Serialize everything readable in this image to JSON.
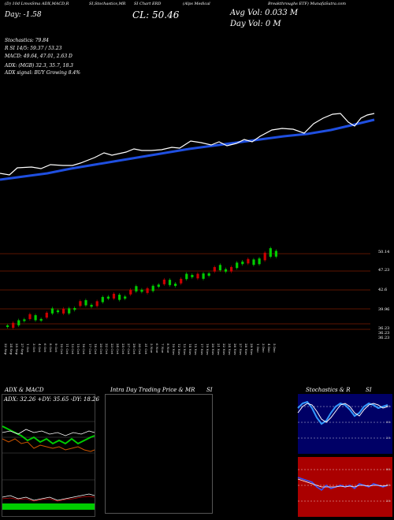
{
  "header": {
    "segments": [
      "(D) 10d LmvsSma ADX,MACD,R",
      "SI,Stochastics,MR",
      "SI Chart ERD",
      "(Alps Medical",
      "Breakthroughs ETF) MunafaSutra.com"
    ],
    "day_change": "Day: -1.58",
    "close": "CL: 50.46",
    "avg_vol": "Avg Vol: 0.033 M",
    "day_vol": "Day Vol: 0   M"
  },
  "indicators": {
    "stochastics": "Stochastics: 79.84",
    "rsi": "R                    SI 14/5: 59.37 / 53.23",
    "macd": "MACD: 49.64, 47.01, 2.63 D",
    "adx": "ADX:                          (MGB) 32.3,  35.7,  18.3",
    "adx_signal": "ADX  signal:                          BUY Growing 8.4%"
  },
  "price_levels": [
    "50.14",
    "47.23",
    "42.6",
    "39.96",
    "36.23",
    "36.23",
    "36.23"
  ],
  "dates": [
    "22 Sep",
    "24 Sep",
    "25 Sep",
    "27 Sep",
    "1 Oct",
    "3 Oct",
    "4 Oct",
    "6 Oct",
    "8 Oct",
    "9 Oct",
    "10 Oct",
    "11 Oct",
    "13 Oct",
    "15 Oct",
    "16 Oct",
    "17 Oct",
    "18 Oct",
    "20 Oct",
    "22 Oct",
    "23 Oct",
    "24 Oct",
    "25 Oct",
    "27 Oct",
    "29 Oct",
    "30 Oct",
    "31 Oct",
    "5 Nov",
    "6 Nov",
    "7 Nov",
    "8 Nov",
    "10 Nov",
    "12 Nov",
    "13 Nov",
    "14 Nov",
    "15 Nov",
    "17 Nov",
    "19 Nov",
    "20 Nov",
    "21 Nov",
    "22 Nov",
    "24 Nov",
    "26 Nov",
    "27 Nov",
    "28 Nov",
    "29 Nov",
    "1 Dec",
    "3 Dec",
    "4 Dec",
    "5 Dec"
  ],
  "panels": {
    "adx_macd": {
      "title": "ADX  & MACD",
      "readout": "ADX: 32.26  +DY: 35.65  -DY: 18.26"
    },
    "intraday": {
      "title": "Intra Day Trading Price  & MR",
      "title_suffix": "SI"
    },
    "stoch_rsi": {
      "title": "Stochastics & R",
      "title_suffix": "SI",
      "stoch_ticks": [
        "80",
        "50",
        "20"
      ],
      "rsi_ticks": [
        "80",
        "50",
        "20"
      ]
    }
  },
  "colors": {
    "background": "#000000",
    "price_line": "#ffffff",
    "ma_line": "#1f4fe0",
    "candle_up": "#00cc00",
    "candle_down": "#cc0000",
    "level_line": "#7a1a00",
    "stoch_panel_bg": "#000066",
    "rsi_panel_bg": "#aa0000"
  }
}
